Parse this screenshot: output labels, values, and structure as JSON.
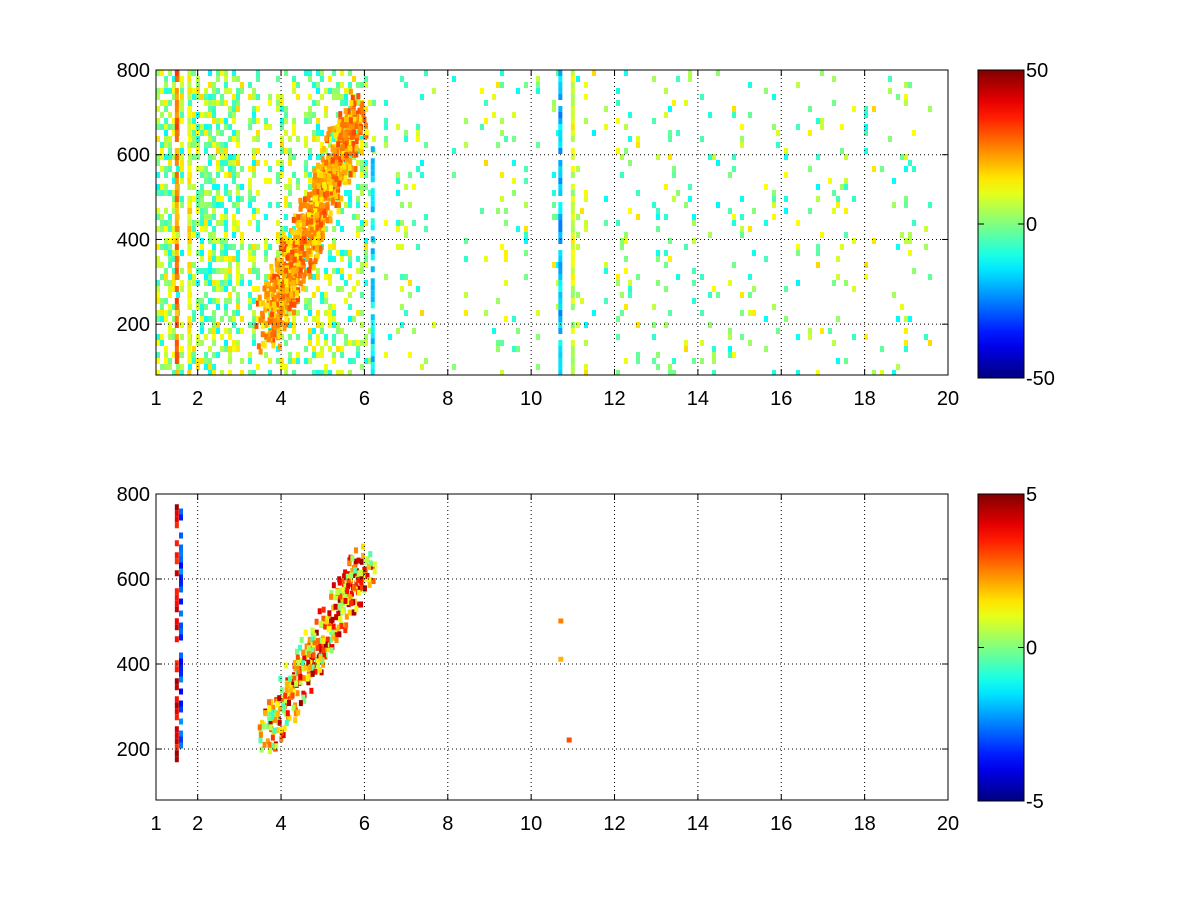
{
  "chart_data": [
    {
      "type": "heatmap",
      "title": "",
      "xlabel": "",
      "ylabel": "",
      "xlim": [
        1,
        20
      ],
      "ylim": [
        80,
        800
      ],
      "x_ticks": [
        {
          "value": 1,
          "label": "1"
        },
        {
          "value": 2,
          "label": "2"
        },
        {
          "value": 4,
          "label": "4"
        },
        {
          "value": 6,
          "label": "6"
        },
        {
          "value": 8,
          "label": "8"
        },
        {
          "value": 10,
          "label": "10"
        },
        {
          "value": 12,
          "label": "12"
        },
        {
          "value": 14,
          "label": "14"
        },
        {
          "value": 16,
          "label": "16"
        },
        {
          "value": 18,
          "label": "18"
        },
        {
          "value": 20,
          "label": "20"
        }
      ],
      "y_ticks": [
        {
          "value": 200,
          "label": "200"
        },
        {
          "value": 400,
          "label": "400"
        },
        {
          "value": 600,
          "label": "600"
        },
        {
          "value": 800,
          "label": "800"
        }
      ],
      "grid": true,
      "colormap": "jet",
      "clim": [
        -50,
        50
      ],
      "colorbar_ticks": [
        {
          "value": 50,
          "label": "50"
        },
        {
          "value": 0,
          "label": "0"
        },
        {
          "value": -50,
          "label": "-50"
        }
      ],
      "colorbar_position": "right",
      "features": [
        {
          "kind": "stripe",
          "x": 1.5,
          "y0": 80,
          "y1": 800,
          "value": 25
        },
        {
          "kind": "stripe",
          "x": 1.8,
          "y0": 80,
          "y1": 800,
          "value": 12
        },
        {
          "kind": "stripe",
          "x": 6.2,
          "y0": 80,
          "y1": 620,
          "value": -15
        },
        {
          "kind": "stripe",
          "x": 10.7,
          "y0": 80,
          "y1": 800,
          "value": -18
        },
        {
          "kind": "stripe",
          "x": 11.0,
          "y0": 80,
          "y1": 800,
          "value": 8
        },
        {
          "kind": "band",
          "x0": 3.6,
          "y0": 200,
          "x1": 5.8,
          "y1": 700,
          "value": 22
        }
      ]
    },
    {
      "type": "heatmap",
      "title": "",
      "xlabel": "",
      "ylabel": "",
      "xlim": [
        1,
        20
      ],
      "ylim": [
        80,
        800
      ],
      "x_ticks": [
        {
          "value": 1,
          "label": "1"
        },
        {
          "value": 2,
          "label": "2"
        },
        {
          "value": 4,
          "label": "4"
        },
        {
          "value": 6,
          "label": "6"
        },
        {
          "value": 8,
          "label": "8"
        },
        {
          "value": 10,
          "label": "10"
        },
        {
          "value": 12,
          "label": "12"
        },
        {
          "value": 14,
          "label": "14"
        },
        {
          "value": 16,
          "label": "16"
        },
        {
          "value": 18,
          "label": "18"
        },
        {
          "value": 20,
          "label": "20"
        }
      ],
      "y_ticks": [
        {
          "value": 200,
          "label": "200"
        },
        {
          "value": 400,
          "label": "400"
        },
        {
          "value": 600,
          "label": "600"
        },
        {
          "value": 800,
          "label": "800"
        }
      ],
      "grid": true,
      "colormap": "jet",
      "clim": [
        -5,
        5
      ],
      "colorbar_ticks": [
        {
          "value": 5,
          "label": "5"
        },
        {
          "value": 0,
          "label": "0"
        },
        {
          "value": -5,
          "label": "-5"
        }
      ],
      "colorbar_position": "right",
      "features": [
        {
          "kind": "stripe",
          "x": 1.5,
          "y0": 180,
          "y1": 790,
          "value": 4
        },
        {
          "kind": "stripe",
          "x": 1.6,
          "y0": 200,
          "y1": 780,
          "value": -3
        },
        {
          "kind": "band",
          "x0": 3.6,
          "y0": 240,
          "x1": 6.0,
          "y1": 650,
          "value": 2
        },
        {
          "kind": "point",
          "x": 10.7,
          "y": 500,
          "value": 2.5
        },
        {
          "kind": "point",
          "x": 10.7,
          "y": 410,
          "value": 2
        },
        {
          "kind": "point",
          "x": 10.9,
          "y": 220,
          "value": 3
        }
      ]
    }
  ]
}
